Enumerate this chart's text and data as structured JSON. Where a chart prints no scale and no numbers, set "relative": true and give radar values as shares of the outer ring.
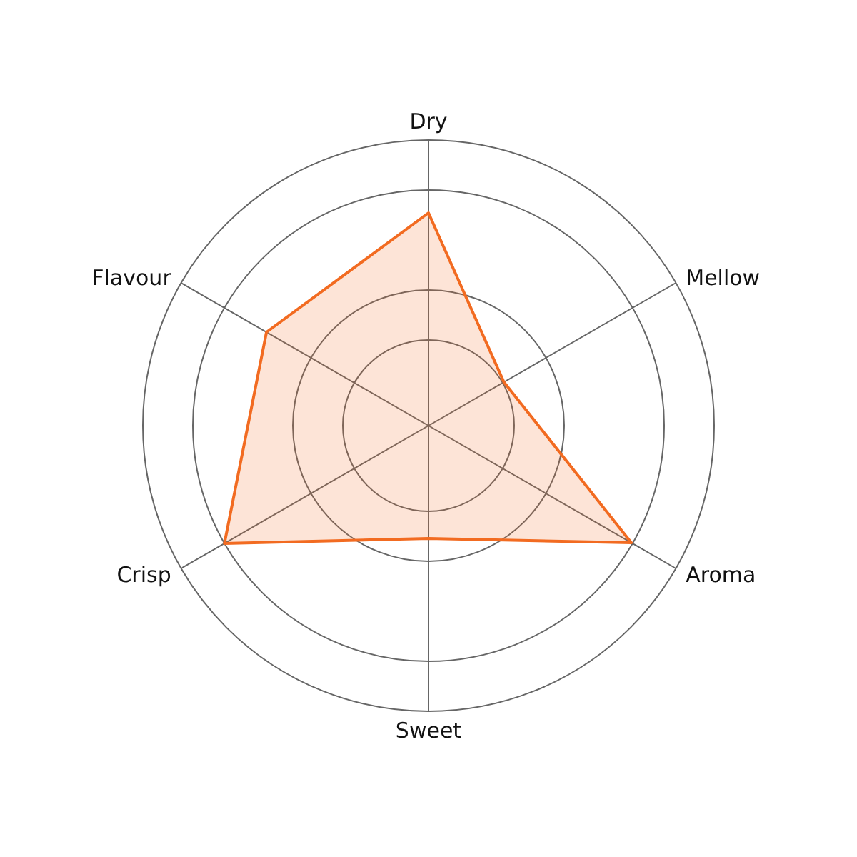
{
  "chart_data": {
    "type": "radar",
    "relative": true,
    "categories": [
      "Dry",
      "Mellow",
      "Aroma",
      "Sweet",
      "Crisp",
      "Flavour"
    ],
    "series": [
      {
        "color": "#f26b21",
        "values": [
          0.745,
          0.305,
          0.82,
          0.395,
          0.825,
          0.655
        ]
      }
    ]
  }
}
